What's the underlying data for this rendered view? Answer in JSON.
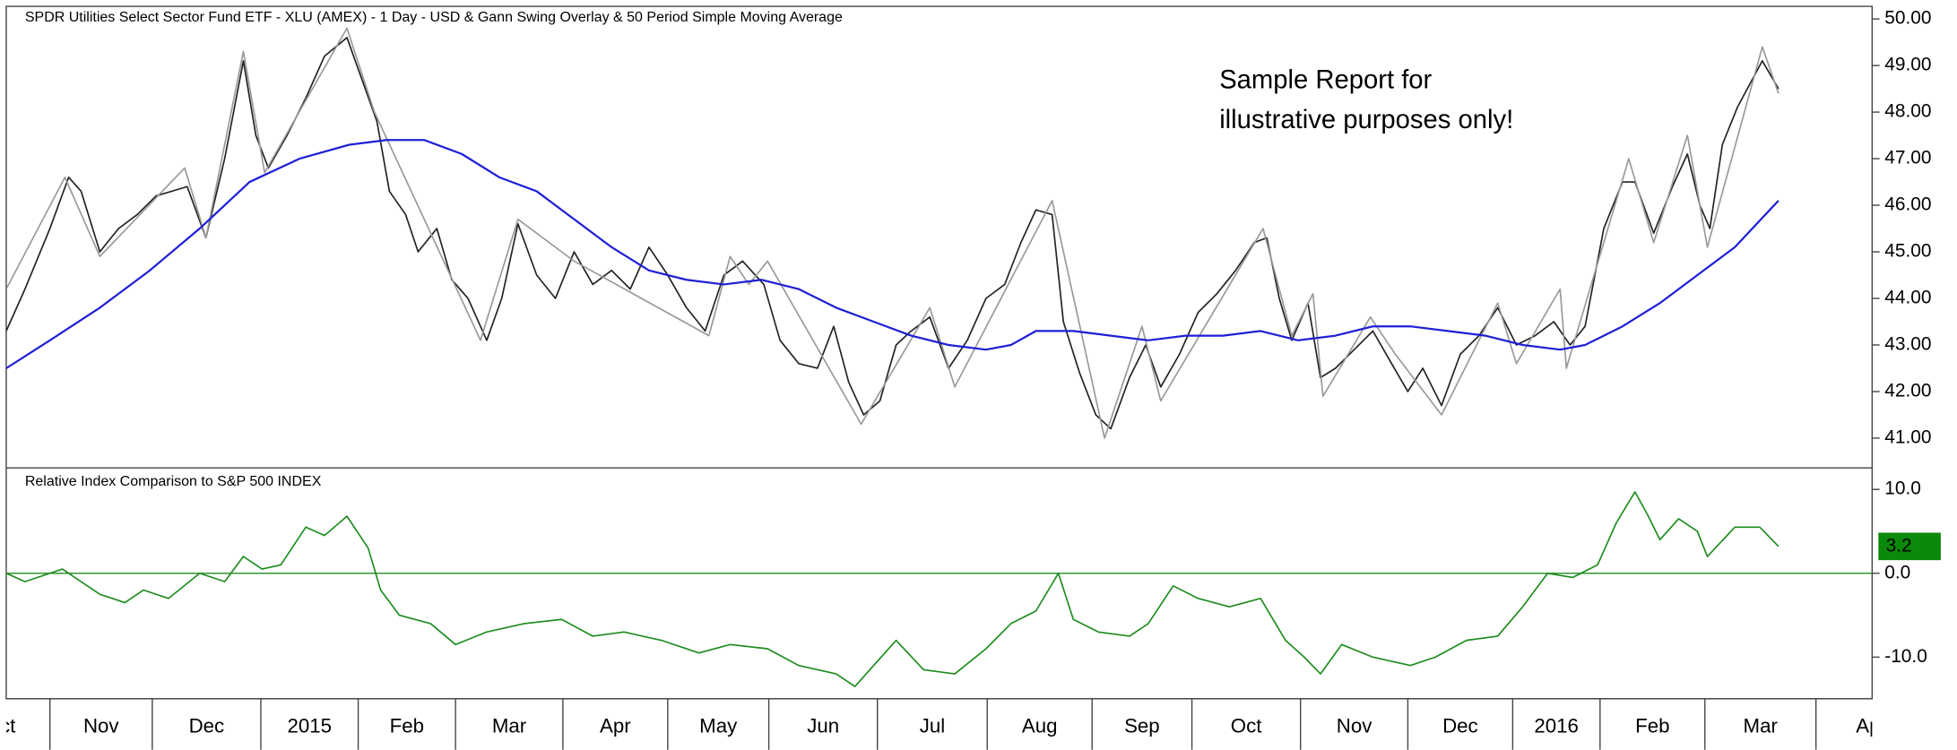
{
  "chart_data": [
    {
      "type": "line",
      "title": "SPDR Utilities Select Sector Fund ETF - XLU (AMEX) - 1 Day - USD & Gann Swing Overlay & 50 Period Simple Moving Average",
      "annotation": [
        "Sample Report for",
        "illustrative purposes only!"
      ],
      "annotation_color": "#ee1c1c",
      "xlim": [
        5,
        1500
      ],
      "xticks": [
        {
          "value": -40,
          "label": "Oct"
        },
        {
          "value": 40,
          "label": "Nov"
        },
        {
          "value": 122,
          "label": "Dec"
        },
        {
          "value": 209,
          "label": "2015"
        },
        {
          "value": 287,
          "label": "Feb"
        },
        {
          "value": 365,
          "label": "Mar"
        },
        {
          "value": 451,
          "label": "Apr"
        },
        {
          "value": 535,
          "label": "May"
        },
        {
          "value": 616,
          "label": "Jun"
        },
        {
          "value": 703,
          "label": "Jul"
        },
        {
          "value": 791,
          "label": "Aug"
        },
        {
          "value": 875,
          "label": "Sep"
        },
        {
          "value": 955,
          "label": "Oct"
        },
        {
          "value": 1042,
          "label": "Nov"
        },
        {
          "value": 1128,
          "label": "Dec"
        },
        {
          "value": 1212,
          "label": "2016"
        },
        {
          "value": 1282,
          "label": "Feb"
        },
        {
          "value": 1366,
          "label": "Mar"
        },
        {
          "value": 1455,
          "label": "Apr"
        }
      ],
      "ylim": [
        40.36,
        50.27
      ],
      "yticks": [
        {
          "value": 41,
          "label": "41.00"
        },
        {
          "value": 42,
          "label": "42.00"
        },
        {
          "value": 43,
          "label": "43.00"
        },
        {
          "value": 44,
          "label": "44.00"
        },
        {
          "value": 45,
          "label": "45.00"
        },
        {
          "value": 46,
          "label": "46.00"
        },
        {
          "value": 47,
          "label": "47.00"
        },
        {
          "value": 48,
          "label": "48.00"
        },
        {
          "value": 49,
          "label": "49.00"
        },
        {
          "value": 50,
          "label": "50.00"
        }
      ],
      "series": [
        {
          "color": "#222222",
          "x": [
            5,
            20,
            40,
            55,
            65,
            80,
            95,
            110,
            125,
            150,
            165,
            180,
            195,
            205,
            215,
            230,
            245,
            260,
            278,
            290,
            302,
            312,
            325,
            335,
            350,
            362,
            375,
            390,
            402,
            415,
            430,
            445,
            460,
            475,
            490,
            505,
            520,
            535,
            550,
            565,
            580,
            595,
            612,
            625,
            640,
            655,
            668,
            680,
            692,
            705,
            718,
            730,
            745,
            760,
            775,
            790,
            805,
            818,
            830,
            843,
            852,
            865,
            878,
            890,
            905,
            918,
            930,
            945,
            960,
            975,
            990,
            1005,
            1015,
            1025,
            1035,
            1048,
            1058,
            1070,
            1085,
            1100,
            1115,
            1128,
            1140,
            1155,
            1170,
            1185,
            1200,
            1215,
            1230,
            1245,
            1258,
            1270,
            1285,
            1300,
            1310,
            1325,
            1340,
            1352,
            1362,
            1370,
            1380,
            1392,
            1402,
            1412,
            1425
          ],
          "values": [
            43.3,
            44.2,
            45.5,
            46.6,
            46.3,
            45.0,
            45.5,
            45.8,
            46.2,
            46.4,
            45.3,
            47.0,
            49.1,
            47.5,
            46.8,
            47.5,
            48.3,
            49.2,
            49.6,
            48.7,
            47.8,
            46.3,
            45.8,
            45.0,
            45.5,
            44.4,
            44.0,
            43.1,
            44.0,
            45.6,
            44.5,
            44.0,
            45.0,
            44.3,
            44.6,
            44.2,
            45.1,
            44.5,
            43.8,
            43.3,
            44.5,
            44.8,
            44.3,
            43.1,
            42.6,
            42.5,
            43.4,
            42.2,
            41.5,
            41.8,
            43.0,
            43.3,
            43.6,
            42.5,
            43.1,
            44.0,
            44.3,
            45.2,
            45.9,
            45.8,
            43.5,
            42.4,
            41.5,
            41.2,
            42.3,
            43.0,
            42.1,
            42.8,
            43.7,
            44.1,
            44.6,
            45.2,
            45.3,
            44.0,
            43.1,
            43.9,
            42.3,
            42.5,
            42.9,
            43.3,
            42.6,
            42.0,
            42.5,
            41.7,
            42.8,
            43.2,
            43.8,
            43.0,
            43.2,
            43.5,
            43.0,
            43.4,
            45.5,
            46.5,
            46.5,
            45.4,
            46.4,
            47.1,
            46.0,
            45.5,
            47.3,
            48.1,
            48.6,
            49.1,
            48.5
          ]
        },
        {
          "color": "#999999",
          "x": [
            5,
            52,
            80,
            148,
            165,
            195,
            212,
            278,
            300,
            385,
            415,
            460,
            568,
            585,
            600,
            615,
            690,
            745,
            765,
            843,
            885,
            915,
            930,
            1012,
            1035,
            1052,
            1060,
            1098,
            1118,
            1155,
            1200,
            1215,
            1250,
            1255,
            1305,
            1325,
            1352,
            1368,
            1412,
            1425
          ],
          "values": [
            44.2,
            46.6,
            44.9,
            46.8,
            45.3,
            49.3,
            46.7,
            49.8,
            48.0,
            43.1,
            45.7,
            44.8,
            43.2,
            44.9,
            44.3,
            44.8,
            41.3,
            43.8,
            42.1,
            46.1,
            41.0,
            43.4,
            41.8,
            45.5,
            43.2,
            44.1,
            41.9,
            43.6,
            42.8,
            41.5,
            43.9,
            42.6,
            44.2,
            42.5,
            47.0,
            45.2,
            47.5,
            45.1,
            49.4,
            48.4
          ]
        },
        {
          "color": "#1f1fd6",
          "x": [
            5,
            40,
            80,
            120,
            160,
            200,
            240,
            280,
            310,
            340,
            370,
            400,
            430,
            460,
            490,
            520,
            550,
            580,
            610,
            640,
            670,
            700,
            730,
            760,
            790,
            810,
            830,
            860,
            890,
            920,
            950,
            980,
            1010,
            1040,
            1070,
            1100,
            1130,
            1160,
            1190,
            1220,
            1250,
            1270,
            1300,
            1330,
            1360,
            1390,
            1425
          ],
          "values": [
            42.5,
            43.1,
            43.8,
            44.6,
            45.5,
            46.5,
            47.0,
            47.3,
            47.4,
            47.4,
            47.1,
            46.6,
            46.3,
            45.7,
            45.1,
            44.6,
            44.4,
            44.3,
            44.4,
            44.2,
            43.8,
            43.5,
            43.2,
            43.0,
            42.9,
            43.0,
            43.3,
            43.3,
            43.2,
            43.1,
            43.2,
            43.2,
            43.3,
            43.1,
            43.2,
            43.4,
            43.4,
            43.3,
            43.2,
            43.0,
            42.9,
            43.0,
            43.4,
            43.9,
            44.5,
            45.1,
            46.1
          ]
        }
      ]
    },
    {
      "type": "line",
      "title": "Relative Index Comparison to S&P 500 INDEX",
      "xlim": [
        5,
        1500
      ],
      "ylim": [
        -14.96,
        12.56
      ],
      "yticks": [
        {
          "value": 10,
          "label": "10.0"
        },
        {
          "value": 0,
          "label": "0.0"
        },
        {
          "value": -10,
          "label": "-10.0"
        }
      ],
      "zero_line": 0,
      "label_fill": "#0a8a0a",
      "series": [
        {
          "color": "#1e8c1e",
          "x": [
            5,
            20,
            50,
            65,
            80,
            100,
            115,
            135,
            160,
            180,
            195,
            210,
            225,
            245,
            260,
            278,
            295,
            305,
            320,
            345,
            365,
            390,
            420,
            450,
            475,
            500,
            530,
            560,
            585,
            615,
            640,
            670,
            685,
            700,
            718,
            740,
            765,
            790,
            810,
            830,
            848,
            860,
            880,
            905,
            920,
            940,
            960,
            985,
            1010,
            1030,
            1045,
            1058,
            1075,
            1100,
            1130,
            1150,
            1175,
            1200,
            1220,
            1240,
            1260,
            1280,
            1295,
            1310,
            1320,
            1330,
            1345,
            1360,
            1368,
            1390,
            1410,
            1425
          ],
          "values": [
            0,
            -1,
            0.5,
            -1,
            -2.5,
            -3.5,
            -2,
            -3,
            0,
            -1,
            2,
            0.5,
            1,
            5.5,
            4.5,
            6.8,
            3,
            -2,
            -5,
            -6,
            -8.5,
            -7,
            -6,
            -5.5,
            -7.5,
            -7,
            -8,
            -9.5,
            -8.5,
            -9,
            -11,
            -12,
            -13.5,
            -11,
            -8,
            -11.5,
            -12,
            -9,
            -6,
            -4.5,
            0,
            -5.5,
            -7,
            -7.5,
            -6,
            -1.5,
            -3,
            -4,
            -3,
            -8,
            -10,
            -12,
            -8.5,
            -10,
            -11,
            -10,
            -8,
            -7.5,
            -4,
            0,
            -0.5,
            1,
            6,
            9.7,
            7,
            4,
            6.5,
            5,
            2,
            5.5,
            5.5,
            3.2
          ]
        }
      ]
    }
  ]
}
